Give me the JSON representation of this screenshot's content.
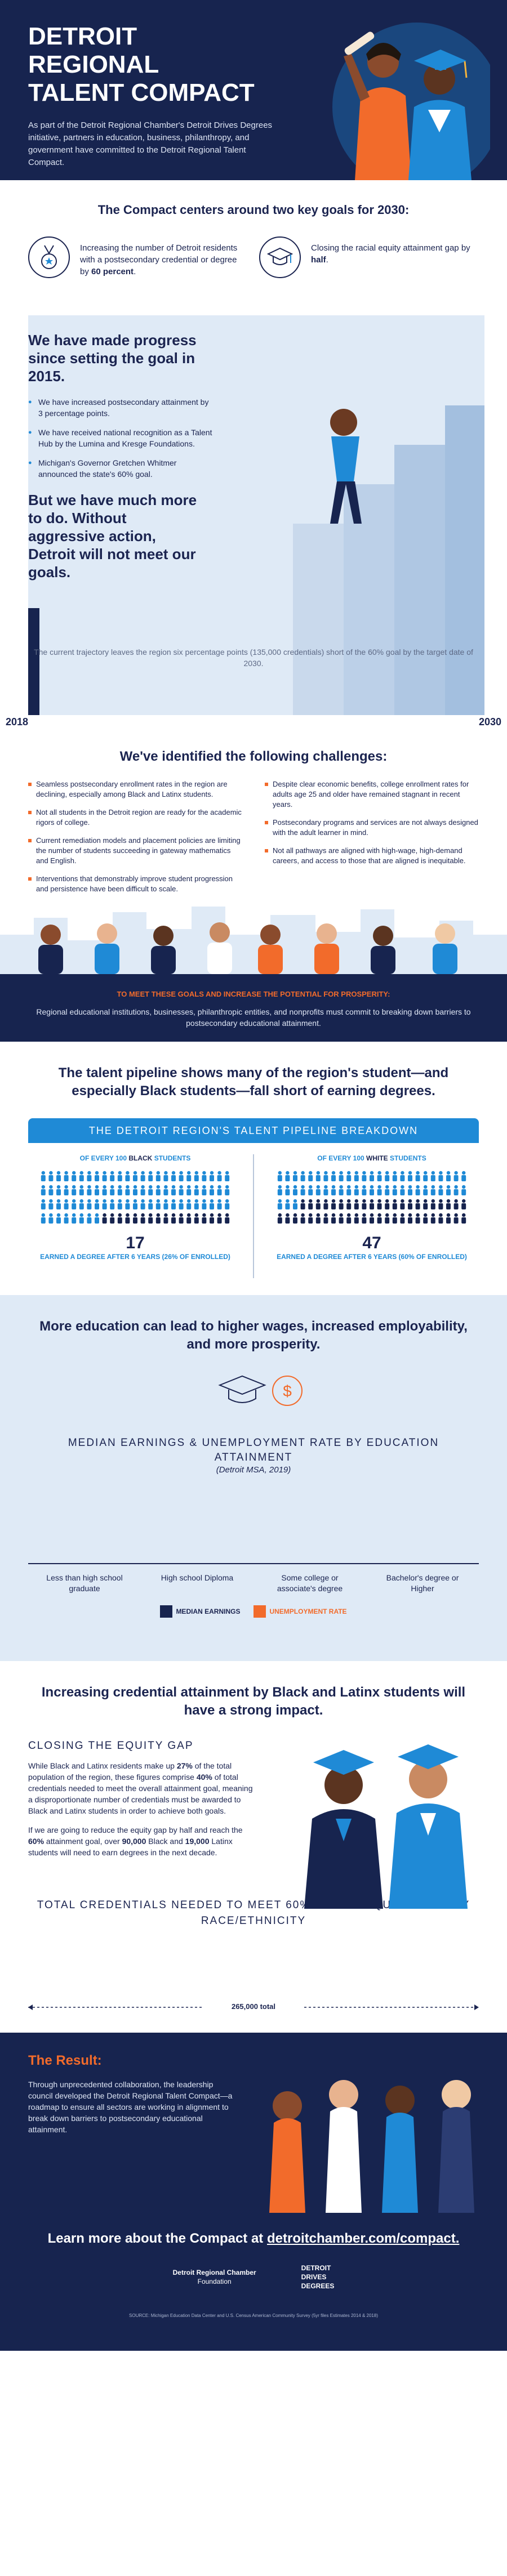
{
  "hero": {
    "title_line1": "DETROIT REGIONAL",
    "title_line2": "TALENT COMPACT",
    "intro": "As part of the Detroit Regional Chamber's Detroit Drives Degrees initiative, partners in education, business, philanthropy, and government have committed to the Detroit Regional Talent Compact."
  },
  "goals": {
    "heading": "The Compact centers around two key goals for 2030:",
    "goal1_text": "Increasing the number of Detroit residents with a postsecondary credential or degree by",
    "goal1_emph": "60 percent",
    "goal2_text": "Closing the racial equity attainment gap by",
    "goal2_emph": "half"
  },
  "progress": {
    "heading": "We have made progress since setting the goal in 2015.",
    "bullets": [
      "We have increased postsecondary attainment by 3 percentage points.",
      "We have received national recognition as a Talent Hub by the Lumina and Kresge Foundations.",
      "Michigan's Governor Gretchen Whitmer announced the state's 60% goal."
    ],
    "warning": "But we have much more to do. Without aggressive action, Detroit will not meet our goals.",
    "trajectory": "The current trajectory leaves the region six percentage points (135,000 credentials) short of the 60% goal by the target date of 2030.",
    "year_start": "2018",
    "year_end": "2030"
  },
  "challenges": {
    "heading": "We've identified the following challenges:",
    "left": [
      "Seamless postsecondary enrollment rates in the region are declining, especially among Black and Latinx students.",
      "Not all students in the Detroit region are ready for the academic rigors of college.",
      "Current remediation models and placement policies are limiting the number of students succeeding in gateway mathematics and English.",
      "Interventions that demonstrably improve student progression and persistence have been difficult to scale."
    ],
    "right": [
      "Despite clear economic benefits, college enrollment rates for adults age 25 and older have remained stagnant in recent years.",
      "Postsecondary programs and services are not always designed with the adult learner in mind.",
      "Not all pathways are aligned with high-wage, high-demand careers, and access to those that are aligned is inequitable."
    ]
  },
  "commit": {
    "title": "To meet these goals and increase the potential for prosperity:",
    "text": "Regional educational institutions, businesses, philanthropic entities, and nonprofits must commit to breaking down barriers to postsecondary educational attainment."
  },
  "pipeline": {
    "heading": "The talent pipeline shows many of the region's student—and especially Black students—fall short of earning degrees.",
    "bar": "THE DETROIT REGION'S TALENT PIPELINE BREAKDOWN",
    "black_pre": "OF EVERY 100",
    "black_word": "BLACK",
    "black_post": "STUDENTS",
    "black_count": "17",
    "black_desc": "EARNED A DEGREE AFTER 6 YEARS (26% OF ENROLLED)",
    "white_pre": "OF EVERY 100",
    "white_word": "WHITE",
    "white_post": "STUDENTS",
    "white_count": "47",
    "white_desc": "EARNED A DEGREE AFTER 6 YEARS (60% OF ENROLLED)"
  },
  "earnings": {
    "heading": "More education can lead to higher wages, increased employability, and more prosperity.",
    "title": "MEDIAN EARNINGS & UNEMPLOYMENT RATE BY EDUCATION ATTAINMENT",
    "subtitle": "(Detroit MSA, 2019)",
    "categories": [
      "Less than high school graduate",
      "High school Diploma",
      "Some college or associate's degree",
      "Bachelor's degree or Higher"
    ],
    "legend_a": "MEDIAN EARNINGS",
    "legend_b": "UNEMPLOYMENT RATE",
    "color_a": "#17244f",
    "color_b": "#f26b2b"
  },
  "equity": {
    "heading": "Increasing credential attainment by Black and Latinx students will have a strong impact.",
    "title": "CLOSING THE EQUITY GAP",
    "p1_a": "While Black and Latinx residents make up",
    "p1_b": "27%",
    "p1_c": "of the total population of the region, these figures comprise",
    "p1_d": "40%",
    "p1_e": "of total credentials needed to meet the overall attainment goal, meaning a disproportionate number of credentials must be awarded to Black and Latinx students in order to achieve both goals.",
    "p2_a": "If we are going to reduce the equity gap by half and reach the",
    "p2_b": "60%",
    "p2_c": "attainment goal, over",
    "p2_d": "90,000",
    "p2_e": "Black and",
    "p2_f": "19,000",
    "p2_g": "Latinx students will need to earn degrees in the next decade.",
    "total_title": "TOTAL CREDENTIALS NEEDED TO MEET 60% GOAL & EQUITY GOAL BY RACE/ETHNICITY",
    "total_label": "265,000 total"
  },
  "result": {
    "heading": "The Result:",
    "text": "Through unprecedented collaboration, the leadership council developed the Detroit Regional Talent Compact—a roadmap to ensure all sectors are working in alignment to break down barriers to postsecondary educational attainment."
  },
  "footer": {
    "learn_pre": "Learn more about the Compact at",
    "learn_link": "detroitchamber.com/compact.",
    "logo1_a": "Detroit Regional Chamber",
    "logo1_b": "Foundation",
    "logo2_a": "DETROIT",
    "logo2_b": "DRIVES",
    "logo2_c": "DEGREES",
    "source": "SOURCE: Michigan Education Data Center and U.S. Census American Community Survey (5yr files Estimates 2014 & 2018)"
  },
  "colors": {
    "navy": "#17244f",
    "blue": "#1f8ad6",
    "orange": "#f26b2b",
    "light": "#dfeaf6"
  }
}
